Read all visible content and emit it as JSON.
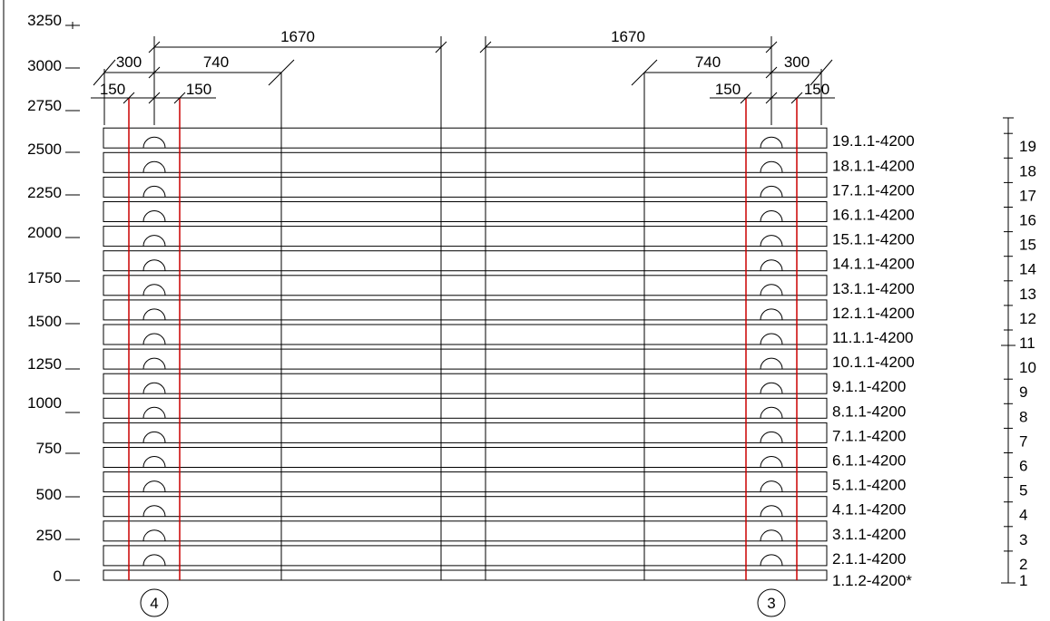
{
  "y_axis": {
    "labels": [
      "0",
      "250",
      "500",
      "750",
      "1000",
      "1250",
      "1500",
      "1750",
      "2000",
      "2250",
      "2500",
      "2750",
      "3000",
      "3250"
    ]
  },
  "dimensions": {
    "left": {
      "top_span": "1670",
      "mid_spans": [
        "300",
        "740"
      ],
      "small_spans": [
        "150",
        "150"
      ]
    },
    "right": {
      "top_span": "1670",
      "mid_spans": [
        "740",
        "300"
      ],
      "small_spans": [
        "150",
        "150"
      ]
    }
  },
  "rows": [
    {
      "label": "1.1.2-4200*",
      "course": "1"
    },
    {
      "label": "2.1.1-4200",
      "course": "2"
    },
    {
      "label": "3.1.1-4200",
      "course": "3"
    },
    {
      "label": "4.1.1-4200",
      "course": "4"
    },
    {
      "label": "5.1.1-4200",
      "course": "5"
    },
    {
      "label": "6.1.1-4200",
      "course": "6"
    },
    {
      "label": "7.1.1-4200",
      "course": "7"
    },
    {
      "label": "8.1.1-4200",
      "course": "8"
    },
    {
      "label": "9.1.1-4200",
      "course": "9"
    },
    {
      "label": "10.1.1-4200",
      "course": "10"
    },
    {
      "label": "11.1.1-4200",
      "course": "11"
    },
    {
      "label": "12.1.1-4200",
      "course": "12"
    },
    {
      "label": "13.1.1-4200",
      "course": "13"
    },
    {
      "label": "14.1.1-4200",
      "course": "14"
    },
    {
      "label": "15.1.1-4200",
      "course": "15"
    },
    {
      "label": "16.1.1-4200",
      "course": "16"
    },
    {
      "label": "17.1.1-4200",
      "course": "17"
    },
    {
      "label": "18.1.1-4200",
      "course": "18"
    },
    {
      "label": "19.1.1-4200",
      "course": "19"
    }
  ],
  "supports": {
    "left": "4",
    "right": "3"
  },
  "colors": {
    "line": "#000000",
    "support_line": "#cc0000",
    "background": "#ffffff"
  }
}
